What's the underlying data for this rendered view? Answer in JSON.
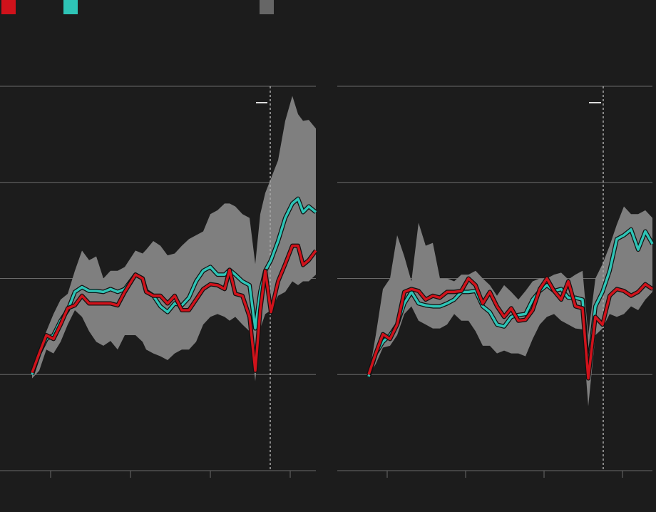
{
  "chart_data": [
    {
      "type": "line",
      "x": [
        4.5,
        5.5,
        6.5,
        7.5,
        8.5,
        9.5,
        10.5,
        11.5,
        12.5,
        13.5,
        14.5,
        15.5,
        16.5,
        17.5,
        19,
        20,
        20.5,
        21.5,
        22.5,
        23.5,
        24.5,
        25.5,
        26.5,
        27.5,
        28.5,
        29.5,
        30.5,
        31.5,
        32.2,
        33,
        34,
        35,
        35.8,
        36.5,
        37.2,
        38,
        39,
        40,
        41,
        41.8,
        42.5,
        43.3,
        44.3
      ],
      "xlim": [
        0,
        44.3
      ],
      "xticks": [
        7.1,
        18.3,
        29.5,
        40.7
      ],
      "vline": 37.9,
      "ylim": [
        0,
        4
      ],
      "yticks": [
        0,
        1,
        2,
        3,
        4
      ],
      "grid": true,
      "band": {
        "color": "#7f7f7f",
        "high": [
          1.0,
          1.22,
          1.45,
          1.63,
          1.78,
          1.84,
          2.08,
          2.29,
          2.19,
          2.23,
          2.0,
          2.08,
          2.08,
          2.12,
          2.29,
          2.26,
          2.3,
          2.39,
          2.34,
          2.24,
          2.26,
          2.34,
          2.41,
          2.45,
          2.49,
          2.67,
          2.71,
          2.78,
          2.78,
          2.75,
          2.67,
          2.63,
          2.15,
          2.67,
          2.89,
          3.04,
          3.23,
          3.64,
          3.9,
          3.71,
          3.64,
          3.65,
          3.56
        ],
        "low": [
          0.96,
          1.04,
          1.26,
          1.22,
          1.34,
          1.52,
          1.67,
          1.6,
          1.45,
          1.34,
          1.3,
          1.35,
          1.26,
          1.41,
          1.41,
          1.34,
          1.26,
          1.22,
          1.19,
          1.15,
          1.22,
          1.26,
          1.26,
          1.34,
          1.52,
          1.6,
          1.63,
          1.6,
          1.56,
          1.6,
          1.52,
          1.45,
          0.93,
          1.48,
          1.63,
          1.67,
          1.82,
          1.86,
          1.97,
          1.93,
          1.97,
          1.97,
          2.04
        ]
      },
      "series": [
        {
          "color": "#2ec4b6",
          "values": [
            1.0,
            1.22,
            1.37,
            1.41,
            1.56,
            1.67,
            1.86,
            1.91,
            1.87,
            1.87,
            1.86,
            1.89,
            1.86,
            1.89,
            2.04,
            2.0,
            1.87,
            1.82,
            1.71,
            1.65,
            1.74,
            1.72,
            1.8,
            1.97,
            2.08,
            2.12,
            2.04,
            2.04,
            2.09,
            2.04,
            1.97,
            1.93,
            1.48,
            1.86,
            2.08,
            2.19,
            2.39,
            2.63,
            2.78,
            2.83,
            2.69,
            2.75,
            2.69
          ]
        },
        {
          "color": "#d0121b",
          "values": [
            1.02,
            1.22,
            1.41,
            1.37,
            1.52,
            1.69,
            1.72,
            1.82,
            1.74,
            1.74,
            1.74,
            1.74,
            1.72,
            1.86,
            2.04,
            2.0,
            1.86,
            1.82,
            1.82,
            1.74,
            1.82,
            1.67,
            1.67,
            1.78,
            1.89,
            1.94,
            1.93,
            1.89,
            2.09,
            1.84,
            1.82,
            1.6,
            1.04,
            1.67,
            2.08,
            1.65,
            1.97,
            2.15,
            2.34,
            2.34,
            2.14,
            2.19,
            2.29
          ]
        }
      ]
    },
    {
      "type": "line",
      "x": [
        4.4,
        5.4,
        6.4,
        7.4,
        8.4,
        9.4,
        10.4,
        11.4,
        12.4,
        13.4,
        14.4,
        15.4,
        16.4,
        17.4,
        18.4,
        19.4,
        20.4,
        21.4,
        22.4,
        23.4,
        24.4,
        25.4,
        26.4,
        27.4,
        28.4,
        29.4,
        30.4,
        31.4,
        32.4,
        33.4,
        34.4,
        35.2,
        36.2,
        37.2,
        38.2,
        39.2,
        40.2,
        41.2,
        42.2,
        43.2,
        44.2
      ],
      "xlim": [
        0,
        44.2
      ],
      "xticks": [
        7,
        18,
        29,
        40
      ],
      "vline": 37.3,
      "ylim": [
        0,
        4
      ],
      "yticks": [
        0,
        1,
        2,
        3,
        4
      ],
      "grid": true,
      "band": {
        "color": "#7f7f7f",
        "high": [
          0.98,
          1.41,
          1.89,
          2.0,
          2.45,
          2.23,
          1.97,
          2.58,
          2.34,
          2.37,
          2.0,
          2.0,
          1.97,
          2.04,
          2.04,
          2.08,
          2.0,
          1.93,
          1.82,
          1.93,
          1.86,
          1.78,
          1.87,
          1.97,
          2.0,
          2.0,
          2.04,
          2.06,
          1.99,
          2.04,
          2.08,
          1.41,
          2.0,
          2.15,
          2.34,
          2.56,
          2.75,
          2.67,
          2.67,
          2.71,
          2.63
        ],
        "low": [
          0.98,
          1.11,
          1.28,
          1.3,
          1.41,
          1.63,
          1.71,
          1.56,
          1.52,
          1.48,
          1.48,
          1.52,
          1.63,
          1.56,
          1.56,
          1.45,
          1.3,
          1.3,
          1.22,
          1.25,
          1.22,
          1.22,
          1.19,
          1.37,
          1.52,
          1.6,
          1.63,
          1.56,
          1.52,
          1.48,
          1.47,
          0.67,
          1.41,
          1.48,
          1.63,
          1.6,
          1.63,
          1.71,
          1.67,
          1.78,
          1.86
        ]
      },
      "series": [
        {
          "color": "#2ec4b6",
          "values": [
            0.98,
            1.22,
            1.34,
            1.41,
            1.52,
            1.74,
            1.86,
            1.74,
            1.72,
            1.71,
            1.71,
            1.74,
            1.78,
            1.86,
            1.86,
            1.87,
            1.71,
            1.65,
            1.52,
            1.5,
            1.6,
            1.62,
            1.63,
            1.78,
            1.87,
            1.93,
            1.87,
            1.89,
            1.8,
            1.8,
            1.78,
            1.04,
            1.71,
            1.86,
            2.08,
            2.41,
            2.45,
            2.51,
            2.3,
            2.49,
            2.36
          ]
        },
        {
          "color": "#d0121b",
          "values": [
            1.0,
            1.22,
            1.42,
            1.37,
            1.52,
            1.86,
            1.89,
            1.87,
            1.78,
            1.82,
            1.8,
            1.86,
            1.86,
            1.87,
            2.0,
            1.93,
            1.74,
            1.86,
            1.71,
            1.6,
            1.69,
            1.56,
            1.57,
            1.67,
            1.89,
            2.0,
            1.87,
            1.78,
            1.97,
            1.71,
            1.69,
            0.96,
            1.6,
            1.52,
            1.82,
            1.89,
            1.87,
            1.82,
            1.86,
            1.94,
            1.89
          ]
        }
      ]
    }
  ]
}
